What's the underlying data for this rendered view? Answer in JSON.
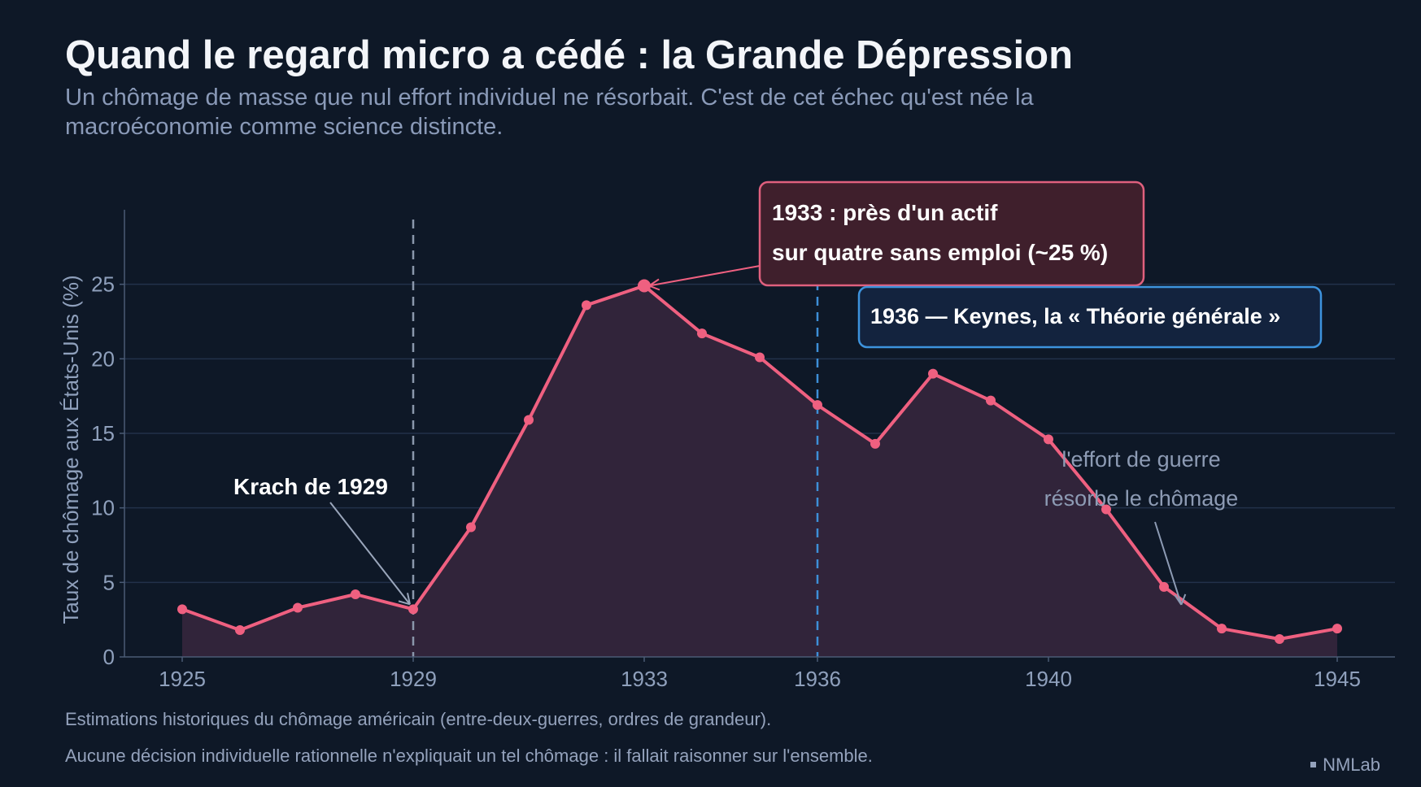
{
  "header": {
    "title": "Quand le regard micro a cédé : la Grande Dépression",
    "subtitle": "Un chômage de masse que nul effort individuel ne résorbait. C'est de cet échec qu'est née la macroéconomie comme science distincte."
  },
  "footer": {
    "note1": "Estimations historiques du chômage américain (entre-deux-guerres, ordres de grandeur).",
    "note2": "Aucune décision individuelle rationnelle n'expliquait un tel chômage : il fallait raisonner sur l'ensemble.",
    "brand": "NMLab"
  },
  "colors": {
    "background": "#0e1827",
    "line": "#ef6080",
    "area": "#31243a",
    "grid": "#22314a",
    "axis": "#4a5a75",
    "tick_text": "#8fa0bc",
    "crash_line": "#8a97ab",
    "keynes_line": "#3d8fd8",
    "peak_box_fill": "#3f1f2c",
    "peak_box_border": "#e0607e",
    "keynes_box_fill": "#13233e",
    "keynes_box_border": "#3d93dd"
  },
  "chart_data": {
    "type": "line",
    "ylabel": "Taux de chômage aux États-Unis (%)",
    "xlabel": "",
    "xlim": [
      1924.0,
      1946.0
    ],
    "ylim": [
      0,
      30
    ],
    "xticks": [
      1925,
      1929,
      1933,
      1936,
      1940,
      1945
    ],
    "yticks": [
      0,
      5,
      10,
      15,
      20,
      25
    ],
    "grid": "horizontal",
    "series": [
      {
        "x": [
          1925,
          1926,
          1927,
          1928,
          1929,
          1930,
          1931,
          1932,
          1933,
          1934,
          1935,
          1936,
          1937,
          1938,
          1939,
          1940,
          1941,
          1942,
          1943,
          1944,
          1945
        ],
        "values": [
          3.2,
          1.8,
          3.3,
          4.2,
          3.2,
          8.7,
          15.9,
          23.6,
          24.9,
          21.7,
          20.1,
          16.9,
          14.3,
          19.0,
          17.2,
          14.6,
          9.9,
          4.7,
          1.9,
          1.2,
          1.9
        ]
      }
    ],
    "vlines": [
      {
        "x": 1929,
        "style": "dashed",
        "role": "crash"
      },
      {
        "x": 1936,
        "style": "dashed",
        "role": "keynes"
      }
    ],
    "annotations": {
      "crash": {
        "text": "Krach de 1929",
        "x": 1929,
        "y": 3.2
      },
      "peak": {
        "lines": [
          "1933 : près d'un actif",
          "sur quatre sans emploi (~25 %)"
        ],
        "x": 1933,
        "y": 24.9
      },
      "keynes": {
        "text": "1936 — Keynes, la « Théorie générale »"
      },
      "war": {
        "lines": [
          "l'effort de guerre",
          "résorbe le chômage"
        ],
        "x": 1942.3,
        "y": 3.5
      }
    }
  }
}
